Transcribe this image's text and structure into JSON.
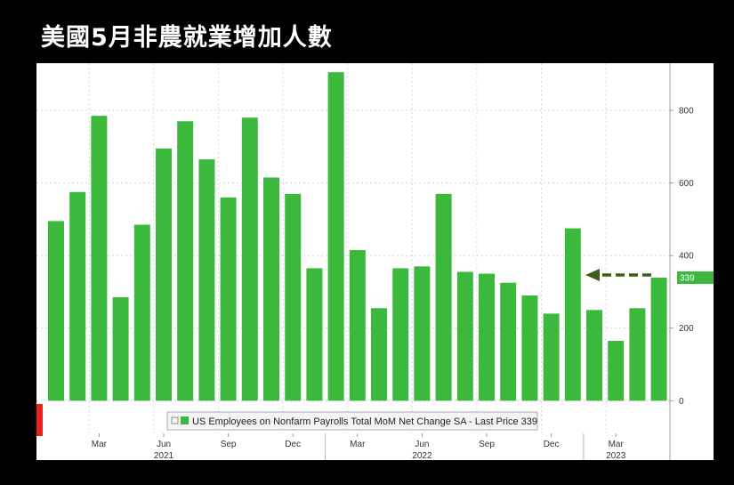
{
  "headline": "美國5月非農就業增加人數",
  "chart_data": {
    "type": "bar",
    "title": "",
    "xlabel": "",
    "ylabel": "",
    "categories": [
      "Jan 2021",
      "Feb 2021",
      "Mar 2021",
      "Apr 2021",
      "May 2021",
      "Jun 2021",
      "Jul 2021",
      "Aug 2021",
      "Sep 2021",
      "Oct 2021",
      "Nov 2021",
      "Dec 2021",
      "Jan 2022",
      "Feb 2022",
      "Mar 2022",
      "Apr 2022",
      "May 2022",
      "Jun 2022",
      "Jul 2022",
      "Aug 2022",
      "Sep 2022",
      "Oct 2022",
      "Nov 2022",
      "Dec 2022",
      "Jan 2023",
      "Feb 2023",
      "Mar 2023",
      "Apr 2023",
      "May 2023"
    ],
    "values": [
      495,
      575,
      785,
      285,
      485,
      695,
      770,
      665,
      560,
      780,
      615,
      570,
      365,
      905,
      415,
      255,
      365,
      370,
      570,
      355,
      350,
      325,
      290,
      240,
      475,
      250,
      165,
      255,
      339
    ],
    "ylim": [
      -90,
      930
    ],
    "yticks": [
      0,
      200,
      400,
      600,
      800
    ],
    "xticks": [
      {
        "index": 2,
        "label": "Mar"
      },
      {
        "index": 5,
        "label": "Jun",
        "year": "2021"
      },
      {
        "index": 8,
        "label": "Sep"
      },
      {
        "index": 11,
        "label": "Dec"
      },
      {
        "index": 14,
        "label": "Mar"
      },
      {
        "index": 17,
        "label": "Jun",
        "year": "2022"
      },
      {
        "index": 20,
        "label": "Sep"
      },
      {
        "index": 23,
        "label": "Dec"
      },
      {
        "index": 26,
        "label": "Mar",
        "year": "2023"
      }
    ],
    "legend": {
      "position": "bottom-center",
      "text": "US Employees on Nonfarm Payrolls Total MoM Net Change SA - Last Price 339"
    },
    "last_price_label": "339",
    "grid": true,
    "colors": {
      "bar": "#3cb93c",
      "arrow": "#3d5e1b",
      "last_label_bg": "#3cb93c",
      "marker": "#e8201f"
    }
  }
}
